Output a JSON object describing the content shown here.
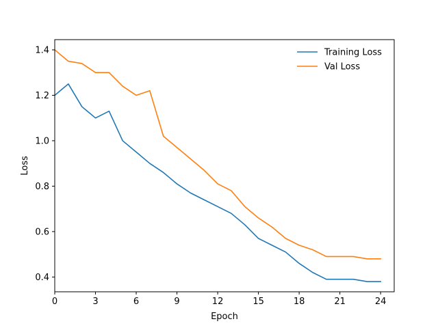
{
  "chart_data": {
    "type": "line",
    "title": "",
    "xlabel": "Epoch",
    "ylabel": "Loss",
    "xlim": [
      0,
      25
    ],
    "ylim": [
      0.335,
      1.445
    ],
    "xticks": [
      0,
      3,
      6,
      9,
      12,
      15,
      18,
      21,
      24
    ],
    "yticks": [
      0.4,
      0.6,
      0.8,
      1.0,
      1.2,
      1.4
    ],
    "xtick_labels": [
      "0",
      "3",
      "6",
      "9",
      "12",
      "15",
      "18",
      "21",
      "24"
    ],
    "ytick_labels": [
      "0.4",
      "0.6",
      "0.8",
      "1.0",
      "1.2",
      "1.4"
    ],
    "grid": false,
    "legend_position": "top-right",
    "x": [
      0,
      1,
      2,
      3,
      4,
      5,
      6,
      7,
      8,
      9,
      10,
      11,
      12,
      13,
      14,
      15,
      16,
      17,
      18,
      19,
      20,
      21,
      22,
      23,
      24
    ],
    "series": [
      {
        "name": "Training Loss",
        "color": "#1f77b4",
        "values": [
          1.2,
          1.25,
          1.15,
          1.1,
          1.13,
          1.0,
          0.95,
          0.9,
          0.86,
          0.81,
          0.77,
          0.74,
          0.71,
          0.68,
          0.63,
          0.57,
          0.54,
          0.51,
          0.46,
          0.42,
          0.39,
          0.39,
          0.39,
          0.38,
          0.38
        ]
      },
      {
        "name": "Val Loss",
        "color": "#ff7f0e",
        "values": [
          1.4,
          1.35,
          1.34,
          1.3,
          1.3,
          1.24,
          1.2,
          1.22,
          1.02,
          0.97,
          0.92,
          0.87,
          0.81,
          0.78,
          0.71,
          0.66,
          0.62,
          0.57,
          0.54,
          0.52,
          0.49,
          0.49,
          0.49,
          0.48,
          0.48
        ]
      }
    ]
  }
}
